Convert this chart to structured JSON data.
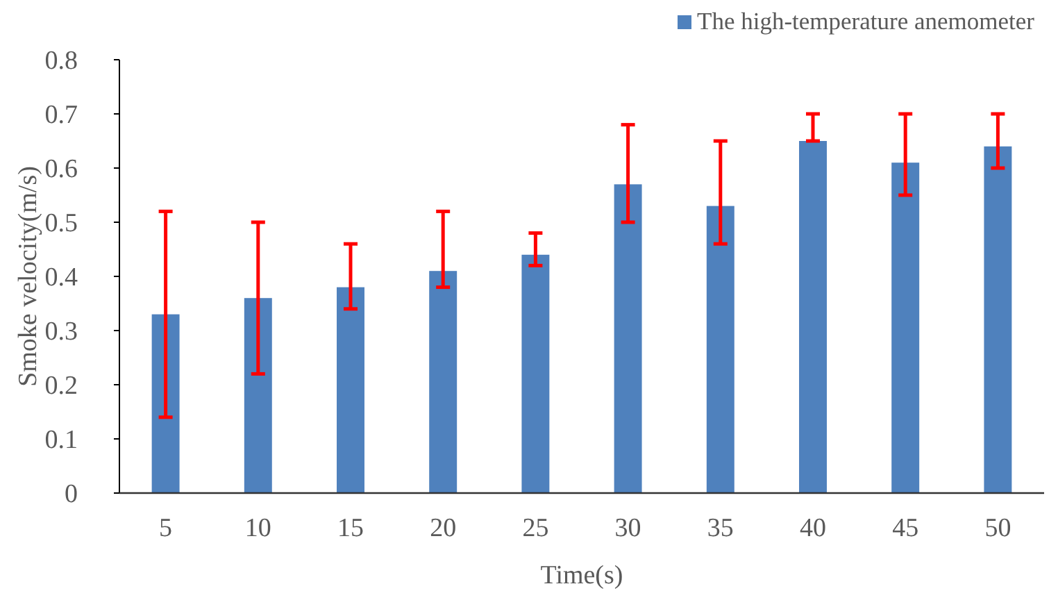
{
  "chart_data": {
    "type": "bar",
    "xlabel": "Time(s)",
    "ylabel": "Smoke velocity(m/s)",
    "categories": [
      "5",
      "10",
      "15",
      "20",
      "25",
      "30",
      "35",
      "40",
      "45",
      "50"
    ],
    "series": [
      {
        "name": "The high-temperature anemometer",
        "color": "#4f81bd",
        "values": [
          0.33,
          0.36,
          0.38,
          0.41,
          0.44,
          0.57,
          0.53,
          0.65,
          0.61,
          0.64
        ],
        "errors": [
          [
            0.14,
            0.52
          ],
          [
            0.22,
            0.5
          ],
          [
            0.34,
            0.46
          ],
          [
            0.38,
            0.52
          ],
          [
            0.42,
            0.48
          ],
          [
            0.5,
            0.68
          ],
          [
            0.46,
            0.65
          ],
          [
            0.65,
            0.7
          ],
          [
            0.55,
            0.7
          ],
          [
            0.6,
            0.7
          ]
        ]
      }
    ],
    "ylim": [
      0,
      0.8
    ],
    "yticks": [
      0,
      0.1,
      0.2,
      0.3,
      0.4,
      0.5,
      0.6,
      0.7,
      0.8
    ],
    "grid": false,
    "legend": "top right"
  }
}
